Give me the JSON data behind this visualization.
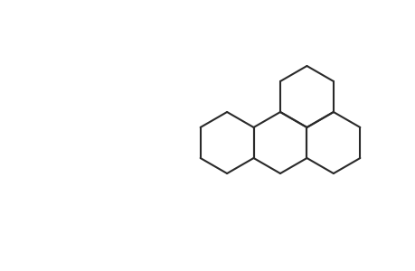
{
  "bg": "#ffffff",
  "lc": "#2a2a2a",
  "lw": 1.5,
  "fs": 8.5,
  "figsize": [
    4.6,
    3.0
  ],
  "dpi": 100
}
